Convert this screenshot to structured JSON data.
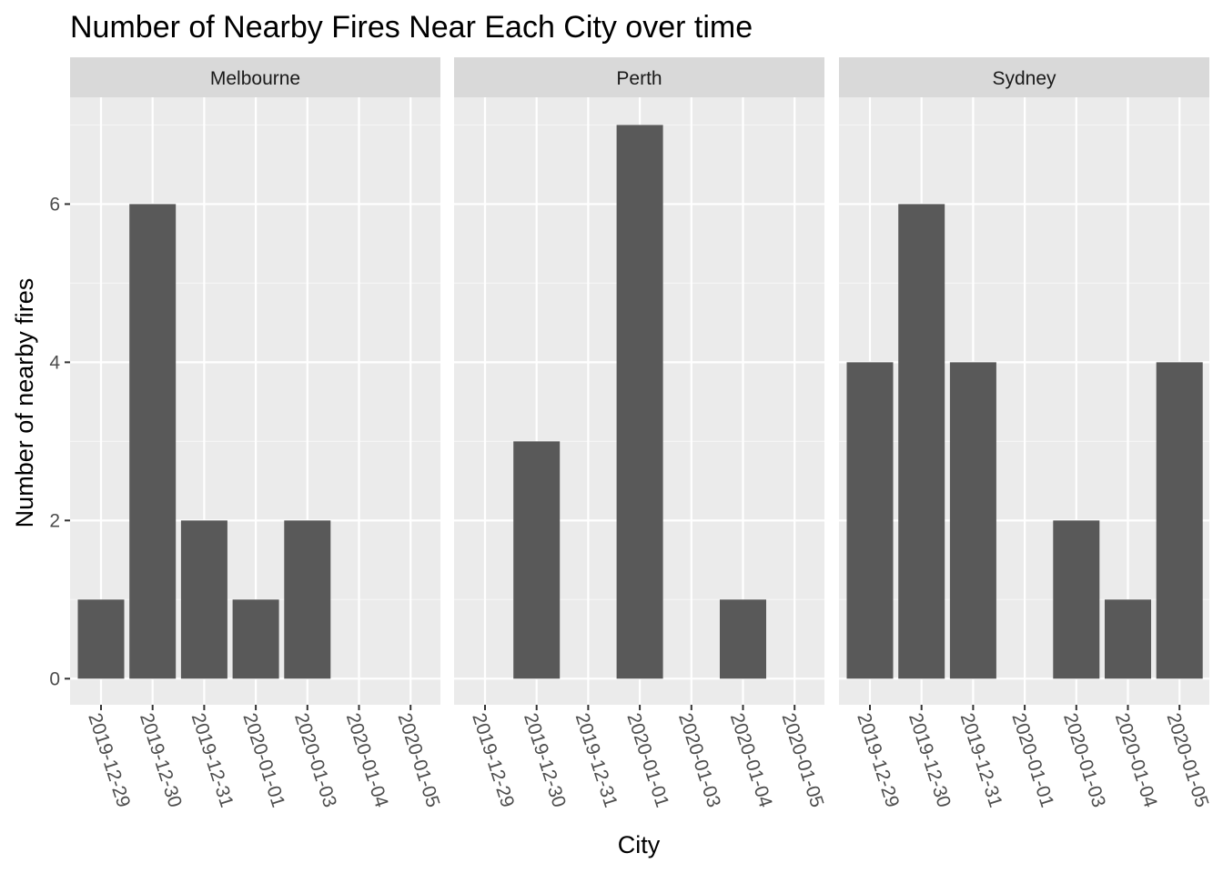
{
  "chart_data": {
    "type": "bar",
    "title": "Number of Nearby Fires Near Each City over time",
    "xlabel": "City",
    "ylabel": "Number of nearby fires",
    "categories": [
      "2019-12-29",
      "2019-12-30",
      "2019-12-31",
      "2020-01-01",
      "2020-01-03",
      "2020-01-04",
      "2020-01-05"
    ],
    "yticks": [
      0,
      2,
      4,
      6
    ],
    "ylim": [
      -0.33,
      7.35
    ],
    "grid": true,
    "facets": [
      {
        "label": "Melbourne",
        "values": [
          1,
          6,
          2,
          1,
          2,
          0,
          0
        ]
      },
      {
        "label": "Perth",
        "values": [
          0,
          3,
          0,
          7,
          0,
          1,
          0
        ]
      },
      {
        "label": "Sydney",
        "values": [
          4,
          6,
          4,
          0,
          2,
          1,
          4
        ]
      }
    ]
  },
  "colors": {
    "background": "#ffffff",
    "panel": "#ebebeb",
    "grid_major": "#ffffff",
    "grid_minor": "#f5f5f5",
    "strip": "#d9d9d9",
    "bar": "#595959",
    "text": "#000000",
    "axis_text": "#4d4d4d",
    "tick": "#333333"
  }
}
